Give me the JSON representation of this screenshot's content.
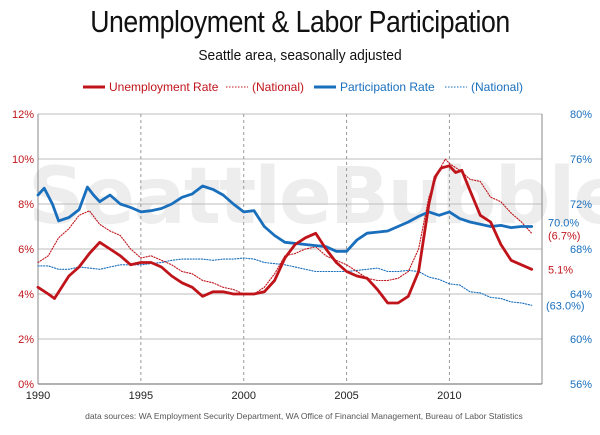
{
  "header": {
    "title": "Unemployment & Labor Participation",
    "subtitle": "Seattle area, seasonally adjusted"
  },
  "watermark": "SeattleBubble.com",
  "source_note": "data sources: WA Employment Security Department, WA Office of Financial Management, Bureau of Labor Statistics",
  "colors": {
    "red": "#c0141b",
    "blue": "#1a6fbd",
    "grid": "#bdbdbd",
    "vgrid": "#9a9a9a"
  },
  "chart_data": {
    "type": "line",
    "title": "Unemployment & Labor Participation",
    "subtitle": "Seattle area, seasonally adjusted",
    "xlim": [
      1990,
      2014.5
    ],
    "x_ticks": [
      1990,
      1995,
      2000,
      2005,
      2010
    ],
    "x_tick_labels": [
      "1990",
      "1995",
      "2000",
      "2005",
      "2010"
    ],
    "y_left": {
      "lim": [
        0,
        12
      ],
      "ticks": [
        0,
        2,
        4,
        6,
        8,
        10,
        12
      ],
      "tick_labels": [
        "0%",
        "2%",
        "4%",
        "6%",
        "8%",
        "10%",
        "12%"
      ]
    },
    "y_right": {
      "lim": [
        56,
        80
      ],
      "ticks": [
        56,
        60,
        64,
        68,
        72,
        76,
        80
      ],
      "tick_labels": [
        "56%",
        "60%",
        "64%",
        "68%",
        "72%",
        "76%",
        "80%"
      ]
    },
    "grid": {
      "horizontal": true,
      "vertical_dashed": [
        1995,
        2000,
        2005,
        2010
      ]
    },
    "legend_position": "top",
    "series": [
      {
        "name": "Unemployment Rate",
        "axis": "left",
        "color": "#c0141b",
        "style": "solid",
        "end_label": "5.1%",
        "x": [
          1990,
          1990.5,
          1990.8,
          1991.5,
          1992,
          1992.5,
          1993,
          1993.5,
          1994,
          1994.5,
          1995,
          1995.5,
          1996,
          1996.5,
          1997,
          1997.5,
          1998,
          1998.5,
          1999,
          1999.5,
          2000,
          2000.5,
          2001,
          2001.5,
          2002,
          2002.5,
          2003,
          2003.5,
          2004,
          2004.5,
          2005,
          2005.5,
          2006,
          2006.5,
          2007,
          2007.5,
          2008,
          2008.5,
          2009,
          2009.3,
          2009.6,
          2010,
          2010.3,
          2010.6,
          2011,
          2011.5,
          2012,
          2012.5,
          2013,
          2013.5,
          2014
        ],
        "y": [
          4.3,
          4.0,
          3.8,
          4.8,
          5.2,
          5.8,
          6.3,
          6.0,
          5.7,
          5.3,
          5.4,
          5.4,
          5.2,
          4.8,
          4.5,
          4.3,
          3.9,
          4.1,
          4.1,
          4.0,
          4.0,
          4.0,
          4.1,
          4.6,
          5.6,
          6.2,
          6.5,
          6.7,
          6.0,
          5.4,
          5.0,
          4.8,
          4.7,
          4.2,
          3.6,
          3.6,
          3.9,
          5.0,
          8.0,
          9.2,
          9.6,
          9.7,
          9.4,
          9.5,
          8.6,
          7.5,
          7.2,
          6.2,
          5.5,
          5.3,
          5.1
        ]
      },
      {
        "name": "(National)",
        "axis": "left",
        "color": "#c0141b",
        "style": "dotted",
        "end_label": "(6.7%)",
        "x": [
          1990,
          1990.5,
          1991,
          1991.5,
          1992,
          1992.5,
          1993,
          1993.5,
          1994,
          1994.5,
          1995,
          1995.5,
          1996,
          1996.5,
          1997,
          1997.5,
          1998,
          1998.5,
          1999,
          1999.5,
          2000,
          2000.5,
          2001,
          2001.5,
          2002,
          2002.5,
          2003,
          2003.5,
          2004,
          2004.5,
          2005,
          2005.5,
          2006,
          2006.5,
          2007,
          2007.5,
          2008,
          2008.5,
          2009,
          2009.5,
          2009.8,
          2010,
          2010.5,
          2011,
          2011.5,
          2012,
          2012.5,
          2013,
          2013.5,
          2014
        ],
        "y": [
          5.4,
          5.7,
          6.5,
          6.9,
          7.5,
          7.7,
          7.1,
          6.8,
          6.6,
          6.0,
          5.6,
          5.7,
          5.5,
          5.3,
          5.0,
          4.9,
          4.6,
          4.5,
          4.3,
          4.2,
          4.0,
          4.0,
          4.3,
          4.9,
          5.7,
          5.8,
          6.0,
          6.1,
          5.7,
          5.5,
          5.3,
          5.0,
          4.7,
          4.6,
          4.6,
          4.7,
          5.0,
          6.0,
          8.3,
          9.5,
          10.0,
          9.8,
          9.5,
          9.1,
          9.0,
          8.3,
          8.1,
          7.6,
          7.2,
          6.7
        ]
      },
      {
        "name": "Participation Rate",
        "axis": "right",
        "color": "#1a6fbd",
        "style": "solid",
        "end_label": "70.0%",
        "x": [
          1990,
          1990.3,
          1990.7,
          1991,
          1991.5,
          1992,
          1992.4,
          1992.7,
          1993,
          1993.5,
          1994,
          1994.5,
          1995,
          1995.5,
          1996,
          1996.5,
          1997,
          1997.5,
          1998,
          1998.5,
          1999,
          1999.5,
          2000,
          2000.5,
          2001,
          2001.5,
          2002,
          2002.5,
          2003,
          2003.5,
          2004,
          2004.5,
          2005,
          2005.5,
          2006,
          2006.5,
          2007,
          2007.5,
          2008,
          2008.5,
          2009,
          2009.5,
          2010,
          2010.5,
          2011,
          2011.5,
          2012,
          2012.5,
          2013,
          2013.5,
          2014
        ],
        "y": [
          72.8,
          73.4,
          72.0,
          70.5,
          70.8,
          71.5,
          73.5,
          72.8,
          72.2,
          72.8,
          72.0,
          71.7,
          71.3,
          71.4,
          71.6,
          72.0,
          72.6,
          72.9,
          73.6,
          73.3,
          72.8,
          72.0,
          71.3,
          71.4,
          70.0,
          69.2,
          68.6,
          68.5,
          68.4,
          68.3,
          68.2,
          67.8,
          67.8,
          68.8,
          69.4,
          69.5,
          69.6,
          70.0,
          70.4,
          70.9,
          71.3,
          71.0,
          71.3,
          70.7,
          70.4,
          70.2,
          70.0,
          70.1,
          69.9,
          70.0,
          70.0
        ]
      },
      {
        "name": "(National)",
        "axis": "right",
        "color": "#1a6fbd",
        "style": "dotted",
        "end_label": "(63.0%)",
        "x": [
          1990,
          1990.5,
          1991,
          1991.5,
          1992,
          1992.5,
          1993,
          1993.5,
          1994,
          1994.5,
          1995,
          1995.5,
          1996,
          1996.5,
          1997,
          1997.5,
          1998,
          1998.5,
          1999,
          1999.5,
          2000,
          2000.5,
          2001,
          2001.5,
          2002,
          2002.5,
          2003,
          2003.5,
          2004,
          2004.5,
          2005,
          2005.5,
          2006,
          2006.5,
          2007,
          2007.5,
          2008,
          2008.5,
          2009,
          2009.5,
          2010,
          2010.5,
          2011,
          2011.5,
          2012,
          2012.5,
          2013,
          2013.5,
          2014
        ],
        "y": [
          66.5,
          66.5,
          66.2,
          66.2,
          66.4,
          66.3,
          66.2,
          66.4,
          66.6,
          66.6,
          66.6,
          66.7,
          66.8,
          67.0,
          67.1,
          67.1,
          67.1,
          67.0,
          67.1,
          67.1,
          67.2,
          67.1,
          66.8,
          66.7,
          66.6,
          66.4,
          66.2,
          66.0,
          66.0,
          66.0,
          66.0,
          66.1,
          66.2,
          66.3,
          66.0,
          66.0,
          66.1,
          66.0,
          65.5,
          65.3,
          64.9,
          64.8,
          64.2,
          64.1,
          63.7,
          63.6,
          63.3,
          63.2,
          63.0
        ]
      }
    ]
  }
}
